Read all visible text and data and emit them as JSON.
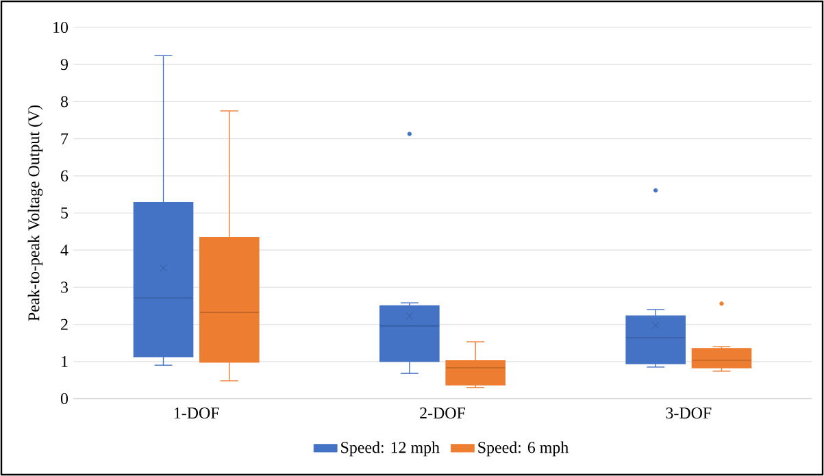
{
  "chart_data": {
    "type": "box",
    "ylabel": "Peak-to-peak Voltage Output (V)",
    "categories": [
      "1-DOF",
      "2-DOF",
      "3-DOF"
    ],
    "ylim": [
      0,
      10
    ],
    "yticks": [
      0,
      1,
      2,
      3,
      4,
      5,
      6,
      7,
      8,
      9,
      10
    ],
    "grid": "y",
    "legend": "bottom",
    "series": [
      {
        "name": "Speed: 12 mph",
        "color": "#4472c4",
        "boxes": [
          {
            "low": 0.9,
            "q1": 1.13,
            "median": 2.71,
            "q3": 5.28,
            "high": 9.24,
            "mean": 3.52
          },
          {
            "low": 0.68,
            "q1": 1.0,
            "median": 1.96,
            "q3": 2.5,
            "high": 2.58,
            "mean": 2.23,
            "outliers": [
              7.13
            ]
          },
          {
            "low": 0.85,
            "q1": 0.94,
            "median": 1.64,
            "q3": 2.23,
            "high": 2.4,
            "mean": 1.97,
            "outliers": [
              5.61
            ]
          }
        ]
      },
      {
        "name": "Speed: 6 mph",
        "color": "#ed7d31",
        "boxes": [
          {
            "low": 0.48,
            "q1": 0.98,
            "median": 2.32,
            "q3": 4.34,
            "high": 7.75
          },
          {
            "low": 0.3,
            "q1": 0.37,
            "median": 0.83,
            "q3": 1.02,
            "high": 1.53
          },
          {
            "low": 0.74,
            "q1": 0.83,
            "median": 1.03,
            "q3": 1.35,
            "high": 1.4,
            "outliers": [
              2.56
            ]
          }
        ]
      }
    ]
  }
}
